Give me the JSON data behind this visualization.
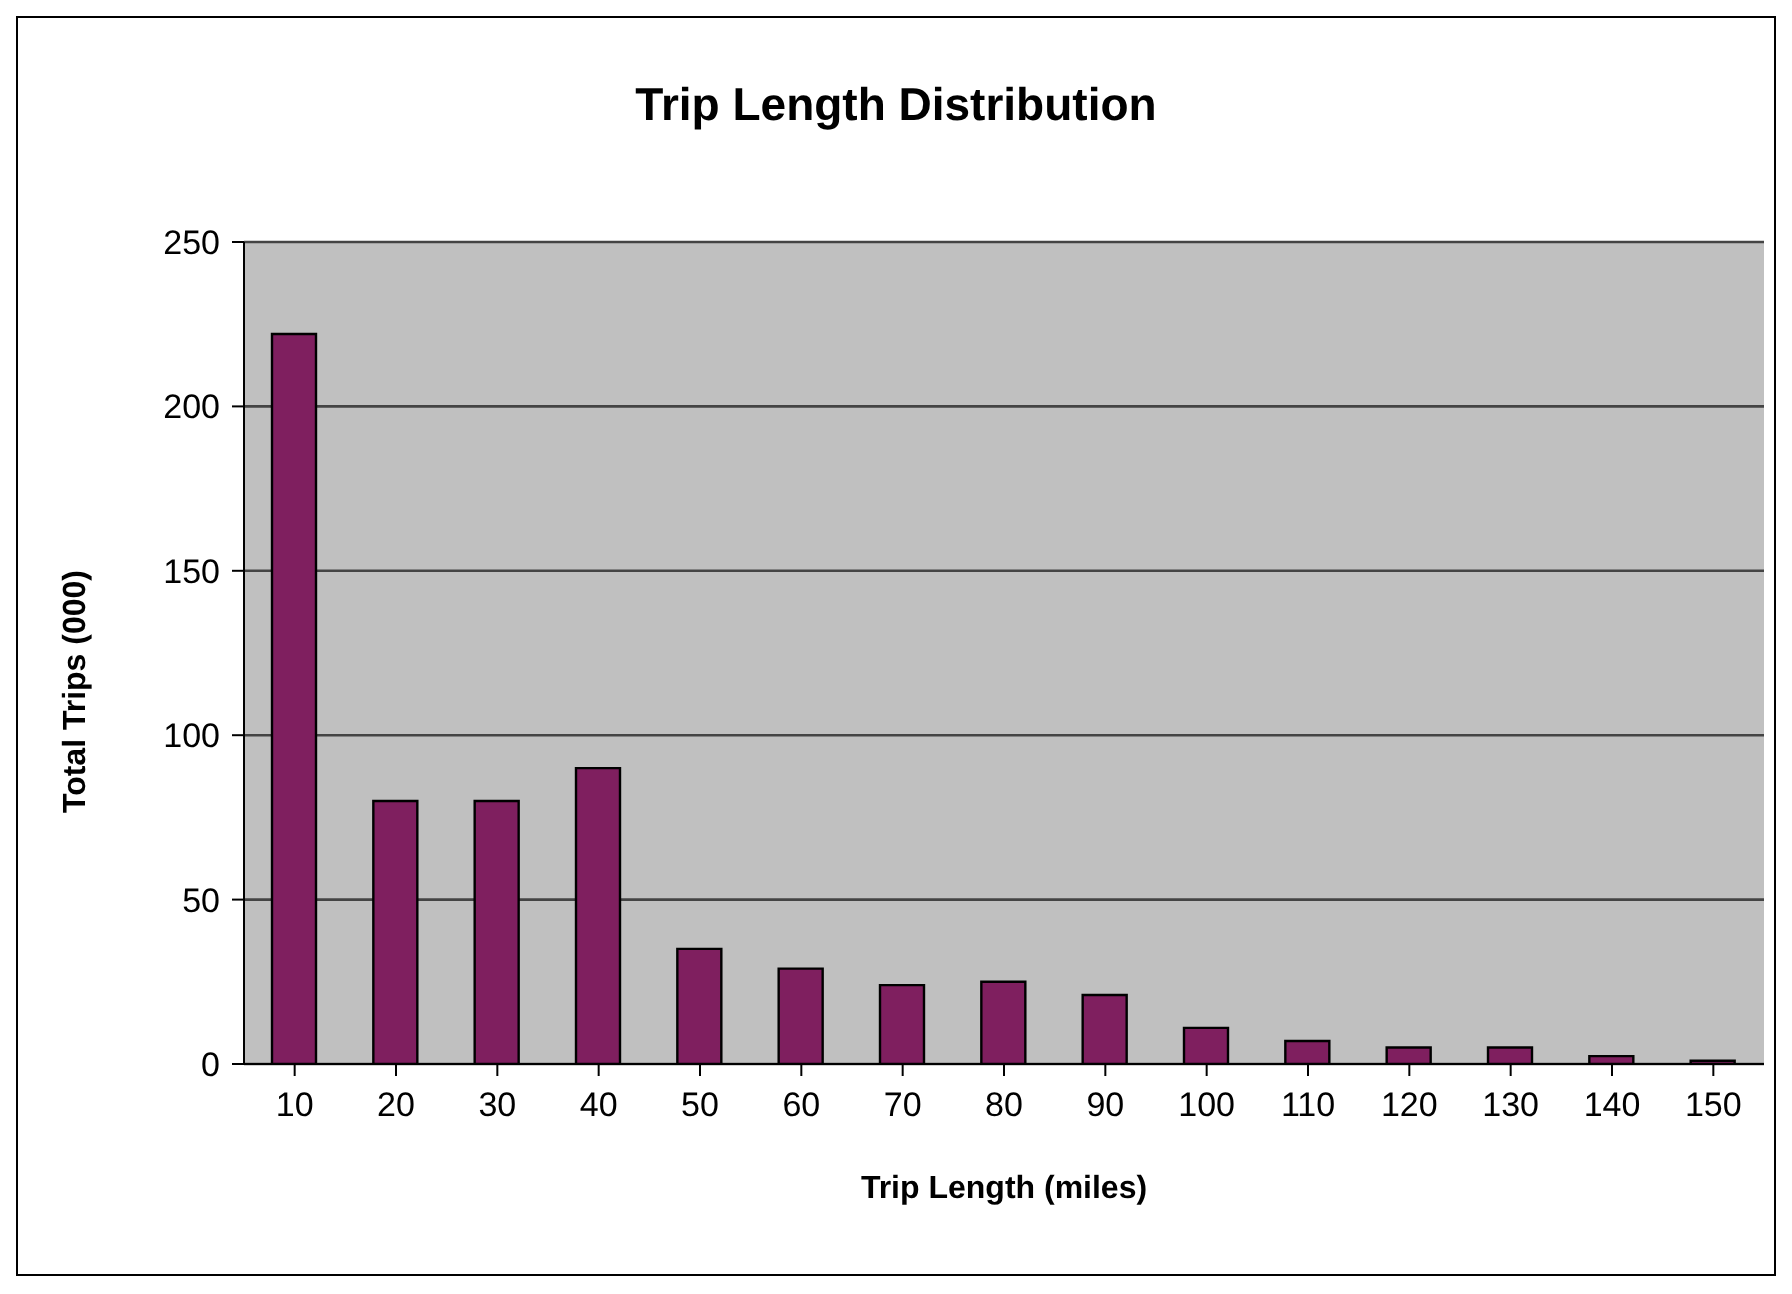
{
  "chart_data": {
    "type": "bar",
    "title": "Trip Length Distribution",
    "xlabel": "Trip Length (miles)",
    "ylabel": "Total Trips (000)",
    "categories": [
      "10",
      "20",
      "30",
      "40",
      "50",
      "60",
      "70",
      "80",
      "90",
      "100",
      "110",
      "120",
      "130",
      "140",
      "150"
    ],
    "values": [
      222,
      80,
      80,
      90,
      35,
      29,
      24,
      25,
      21,
      11,
      7,
      5,
      5,
      2.4,
      1
    ],
    "color": "#7f1f5f",
    "ylim": [
      0,
      250
    ],
    "yticks": [
      0,
      50,
      100,
      150,
      200,
      250
    ],
    "grid": "y",
    "legend": false
  }
}
